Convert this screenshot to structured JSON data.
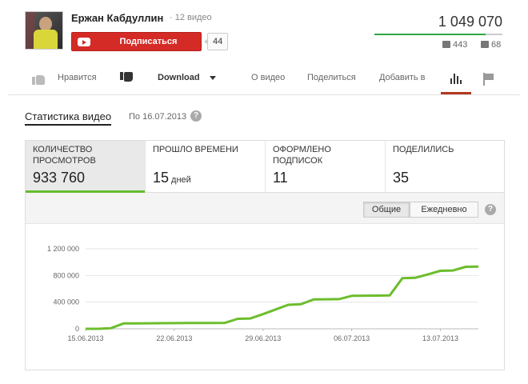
{
  "channel": {
    "name": "Ержан Кабдуллин",
    "video_count": "· 12 видео",
    "subscribe_label": "Подписаться",
    "subscriber_count": "44"
  },
  "video": {
    "views": "1 049 070",
    "likes": "443",
    "dislikes": "68",
    "like_ratio": 0.867
  },
  "actions": {
    "like_label": "Нравится",
    "download_label": "Download",
    "about_label": "О видео",
    "share_label": "Поделиться",
    "add_label": "Добавить в"
  },
  "stats": {
    "title": "Статистика видео",
    "date": "По 16.07.2013",
    "metrics": [
      {
        "label": "Количество просмотров",
        "value": "933 760",
        "unit": ""
      },
      {
        "label": "Прошло времени",
        "value": "15",
        "unit": "дней"
      },
      {
        "label": "Оформлено подписок",
        "value": "11",
        "unit": ""
      },
      {
        "label": "Поделились",
        "value": "35",
        "unit": ""
      }
    ],
    "toggle": {
      "total": "Общие",
      "daily": "Ежедневно"
    }
  },
  "chart_data": {
    "type": "line",
    "color": "#6cbd2c",
    "y_ticks": [
      "1 200 000",
      "800 000",
      "400 000",
      "0"
    ],
    "y_tick_values": [
      1200000,
      800000,
      400000,
      0
    ],
    "x_ticks": [
      "15.06.2013",
      "22.06.2013",
      "29.06.2013",
      "06.07.2013",
      "13.07.2013"
    ],
    "x_tick_values": [
      "2013-06-15",
      "2013-06-22",
      "2013-06-29",
      "2013-07-06",
      "2013-07-13"
    ],
    "ylim": [
      0,
      1200000
    ],
    "grid": true,
    "series": [
      {
        "x": [
          "2013-06-15",
          "2013-06-16",
          "2013-06-17",
          "2013-06-18",
          "2013-06-19",
          "2013-06-20",
          "2013-06-21",
          "2013-06-22",
          "2013-06-23",
          "2013-06-24",
          "2013-06-25",
          "2013-06-26",
          "2013-06-27",
          "2013-06-28",
          "2013-06-29",
          "2013-06-30",
          "2013-07-01",
          "2013-07-02",
          "2013-07-03",
          "2013-07-04",
          "2013-07-05",
          "2013-07-06",
          "2013-07-07",
          "2013-07-08",
          "2013-07-09",
          "2013-07-10",
          "2013-07-11",
          "2013-07-12",
          "2013-07-13",
          "2013-07-14",
          "2013-07-15",
          "2013-07-16"
        ],
        "values": [
          0,
          0,
          10000,
          80000,
          82000,
          83000,
          84000,
          85000,
          86000,
          87000,
          88000,
          89000,
          150000,
          155000,
          220000,
          290000,
          360000,
          370000,
          440000,
          443000,
          445000,
          495000,
          497000,
          498000,
          500000,
          760000,
          765000,
          815000,
          870000,
          875000,
          930000,
          933760
        ]
      }
    ]
  }
}
